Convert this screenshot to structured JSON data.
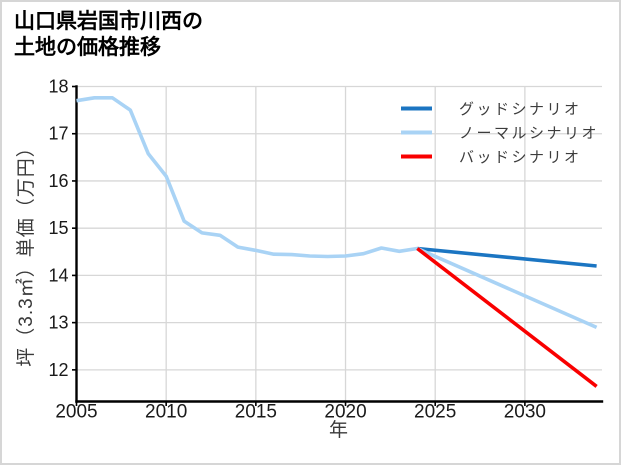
{
  "title": {
    "line1": "山口県岩国市川西の",
    "line2": "土地の価格推移"
  },
  "chart_data": {
    "type": "line",
    "title": "山口県岩国市川西の土地の価格推移",
    "xlabel": "年",
    "ylabel": "坪（3.3㎡）単価（万円）",
    "xlim": [
      2005,
      2034.3
    ],
    "ylim": [
      11.33,
      18
    ],
    "xticks": [
      2005,
      2010,
      2015,
      2020,
      2025,
      2030
    ],
    "yticks": [
      12,
      13,
      14,
      15,
      16,
      17,
      18
    ],
    "grid": true,
    "legend_position": "upper right",
    "colors": {
      "good": "#1b75c2",
      "normal": "#a9d3f5",
      "bad": "#f90000",
      "grid": "#d7d7d7",
      "axis": "#000000"
    },
    "series": [
      {
        "name": null,
        "role": "history",
        "color": "#a9d3f5",
        "width": 3.6,
        "x": [
          2005,
          2006,
          2007,
          2008,
          2009,
          2010,
          2011,
          2012,
          2013,
          2014,
          2015,
          2016,
          2017,
          2018,
          2019,
          2020,
          2021,
          2022,
          2023,
          2024
        ],
        "values": [
          17.7,
          17.76,
          17.76,
          17.5,
          16.58,
          16.1,
          15.15,
          14.9,
          14.85,
          14.6,
          14.53,
          14.45,
          14.44,
          14.41,
          14.4,
          14.41,
          14.46,
          14.58,
          14.51,
          14.57
        ]
      },
      {
        "name": "グッドシナリオ",
        "role": "good-scenario",
        "color": "#1b75c2",
        "width": 3.6,
        "x": [
          2024,
          2034
        ],
        "values": [
          14.57,
          14.2
        ]
      },
      {
        "name": "ノーマルシナリオ",
        "role": "normal-scenario",
        "color": "#a9d3f5",
        "width": 3.6,
        "x": [
          2024,
          2034
        ],
        "values": [
          14.57,
          12.9
        ]
      },
      {
        "name": "バッドシナリオ",
        "role": "bad-scenario",
        "color": "#f90000",
        "width": 3.6,
        "x": [
          2024,
          2034
        ],
        "values": [
          14.57,
          11.65
        ]
      }
    ]
  }
}
